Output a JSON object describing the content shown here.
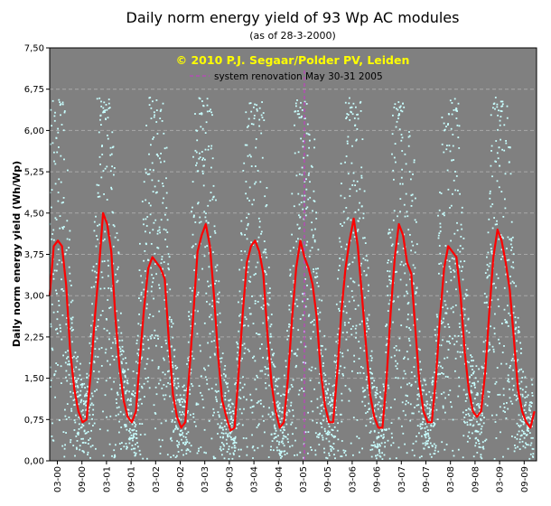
{
  "chart_data": {
    "type": "scatter+line",
    "title": "Daily norm energy yield of 93 Wp AC modules",
    "subtitle": "(as of 28-3-2000)",
    "copyright": "© 2010 P.J. Segaar/Polder PV, Leiden",
    "ylabel": "Daily norm energy yield (Wh/Wp)",
    "xlabel": "",
    "ylim": [
      0,
      7.5
    ],
    "y_ticks": [
      "0,00",
      "0,75",
      "1,50",
      "2,25",
      "3,00",
      "3,75",
      "4,50",
      "5,25",
      "6,00",
      "6,75",
      "7,50"
    ],
    "x_ticks": [
      "03-00",
      "09-00",
      "03-01",
      "09-01",
      "03-02",
      "09-02",
      "03-03",
      "09-03",
      "03-04",
      "09-04",
      "03-05",
      "09-05",
      "03-06",
      "09-06",
      "03-07",
      "09-07",
      "03-08",
      "09-08",
      "03-09",
      "09-09"
    ],
    "grid": "horizontal dashed",
    "annotation": {
      "label": "system renovation May 30-31 2005",
      "x_months": 62
    },
    "colors": {
      "plot_bg": "#808080",
      "scatter": "#c8ffff",
      "line": "#ff0000",
      "annotation": "#cc33cc",
      "copyright": "#ffff00"
    },
    "series": [
      {
        "type": "scatter",
        "description_points": "daily values, seasonal spread 0.05 - 6.6"
      },
      {
        "type": "line",
        "x_months": [
          0,
          1,
          2,
          3,
          4,
          5,
          6,
          7,
          8,
          9,
          10,
          11,
          12,
          13,
          14,
          15,
          16,
          17,
          18,
          19,
          20,
          21,
          22,
          23,
          24,
          25,
          26,
          27,
          28,
          29,
          30,
          31,
          32,
          33,
          34,
          35,
          36,
          37,
          38,
          39,
          40,
          41,
          42,
          43,
          44,
          45,
          46,
          47,
          48,
          49,
          50,
          51,
          52,
          53,
          54,
          55,
          56,
          57,
          58,
          59,
          60,
          61,
          62,
          63,
          64,
          65,
          66,
          67,
          68,
          69,
          70,
          71,
          72,
          73,
          74,
          75,
          76,
          77,
          78,
          79,
          80,
          81,
          82,
          83,
          84,
          85,
          86,
          87,
          88,
          89,
          90,
          91,
          92,
          93,
          94,
          95,
          96,
          97,
          98,
          99,
          100,
          101,
          102,
          103,
          104,
          105,
          106,
          107,
          108,
          109,
          110,
          111,
          112,
          113,
          114,
          115,
          116,
          117,
          118
        ],
        "values": [
          3.0,
          3.9,
          4.0,
          3.9,
          3.2,
          2.0,
          1.3,
          0.9,
          0.7,
          0.75,
          1.6,
          2.6,
          3.5,
          4.5,
          4.3,
          3.8,
          2.6,
          1.7,
          1.1,
          0.8,
          0.7,
          0.9,
          1.9,
          2.8,
          3.5,
          3.7,
          3.6,
          3.5,
          3.3,
          2.2,
          1.2,
          0.8,
          0.6,
          0.7,
          1.6,
          2.7,
          3.8,
          4.1,
          4.3,
          3.9,
          3.0,
          1.9,
          1.1,
          0.8,
          0.55,
          0.6,
          1.6,
          2.7,
          3.6,
          3.9,
          4.0,
          3.8,
          3.4,
          2.3,
          1.4,
          0.9,
          0.6,
          0.7,
          1.5,
          2.6,
          3.5,
          4.0,
          3.7,
          3.5,
          3.2,
          2.6,
          1.6,
          1.0,
          0.7,
          0.7,
          1.6,
          2.7,
          3.5,
          4.0,
          4.4,
          3.9,
          3.0,
          2.1,
          1.2,
          0.8,
          0.6,
          0.6,
          1.5,
          2.7,
          3.7,
          4.3,
          4.1,
          3.6,
          3.4,
          2.4,
          1.4,
          0.9,
          0.7,
          0.7,
          1.5,
          2.6,
          3.5,
          3.9,
          3.8,
          3.7,
          3.0,
          2.0,
          1.3,
          0.9,
          0.8,
          0.9,
          1.6,
          2.7,
          3.7,
          4.2,
          4.0,
          3.6,
          3.1,
          2.2,
          1.3,
          0.9,
          0.7,
          0.6,
          0.9
        ]
      }
    ]
  }
}
